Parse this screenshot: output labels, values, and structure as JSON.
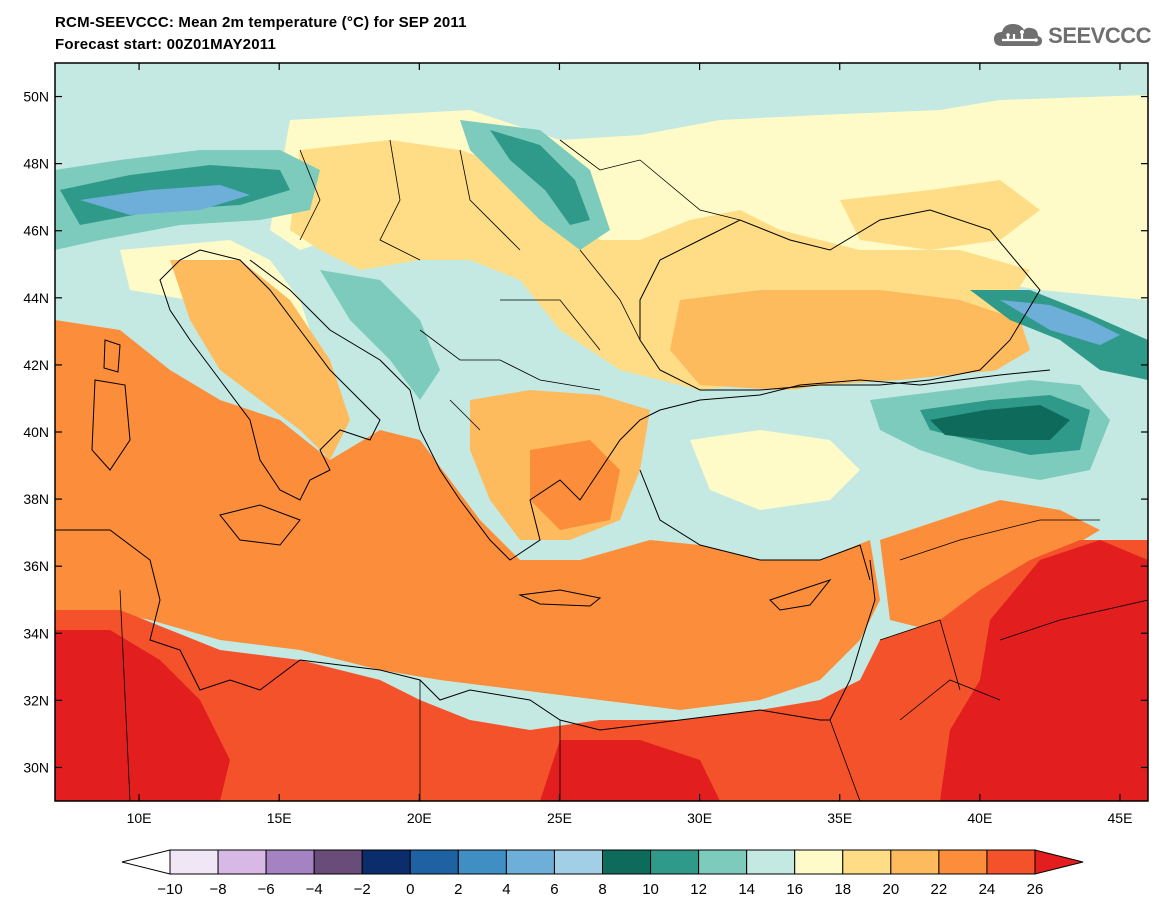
{
  "header": {
    "title_line1": "RCM-SEEVCCC: Mean 2m temperature (°C) for SEP 2011",
    "title_line2": "Forecast start: 00Z01MAY2011"
  },
  "logo": {
    "text": "SEEVCCC",
    "icon": "cloud-logo-icon",
    "color": "#6f6f6f"
  },
  "map": {
    "lon_range": [
      7,
      46
    ],
    "lat_range": [
      29,
      51
    ],
    "lat_ticks": [
      {
        "value": 50,
        "label": "50N"
      },
      {
        "value": 48,
        "label": "48N"
      },
      {
        "value": 46,
        "label": "46N"
      },
      {
        "value": 44,
        "label": "44N"
      },
      {
        "value": 42,
        "label": "42N"
      },
      {
        "value": 40,
        "label": "40N"
      },
      {
        "value": 38,
        "label": "38N"
      },
      {
        "value": 36,
        "label": "36N"
      },
      {
        "value": 34,
        "label": "34N"
      },
      {
        "value": 32,
        "label": "32N"
      },
      {
        "value": 30,
        "label": "30N"
      }
    ],
    "lon_ticks": [
      {
        "value": 10,
        "label": "10E"
      },
      {
        "value": 15,
        "label": "15E"
      },
      {
        "value": 20,
        "label": "20E"
      },
      {
        "value": 25,
        "label": "25E"
      },
      {
        "value": 30,
        "label": "30E"
      },
      {
        "value": 35,
        "label": "35E"
      },
      {
        "value": 40,
        "label": "40E"
      },
      {
        "value": 45,
        "label": "45E"
      }
    ]
  },
  "colorbar": {
    "labels": [
      "-10",
      "-8",
      "-6",
      "-4",
      "-2",
      "0",
      "2",
      "4",
      "6",
      "8",
      "10",
      "12",
      "14",
      "16",
      "18",
      "20",
      "22",
      "24",
      "26"
    ],
    "colors": [
      "#ffffff",
      "#f1e6f6",
      "#d8b9e6",
      "#a583c2",
      "#6a4c7a",
      "#0b2d6b",
      "#1f62a3",
      "#3f8fc5",
      "#6dafd8",
      "#a3cfe6",
      "#0e6b5b",
      "#2f9a8a",
      "#7ccbbd",
      "#c4e9e2",
      "#fffbc8",
      "#fedd86",
      "#fdbb5e",
      "#fc8d3b",
      "#f4522b",
      "#e21e1e"
    ]
  }
}
